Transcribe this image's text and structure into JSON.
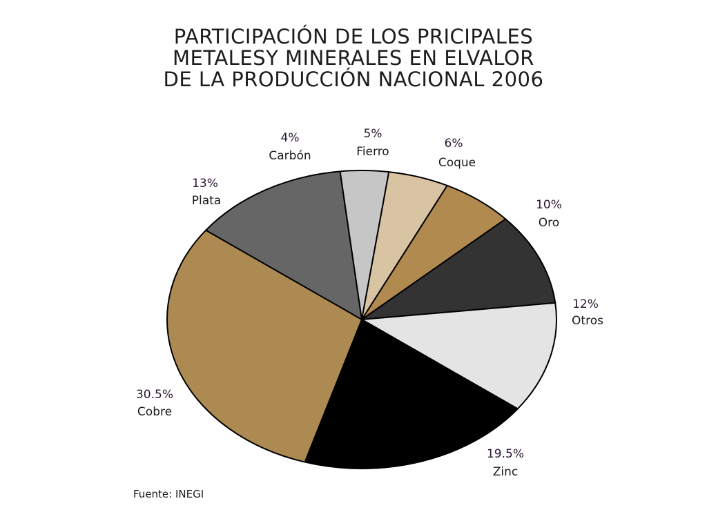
{
  "chart_data": {
    "type": "pie",
    "title_lines": [
      "PARTICIPACIÓN DE LOS PRICIPALES",
      "METALESY MINERALES EN ELVALOR",
      "DE LA PRODUCCIÓN NACIONAL 2006"
    ],
    "slices": [
      {
        "name": "Coque",
        "value": 6,
        "label": "6%",
        "color": "#b08a4e"
      },
      {
        "name": "Oro",
        "value": 10,
        "label": "10%",
        "color": "#333333"
      },
      {
        "name": "Otros",
        "value": 12,
        "label": "12%",
        "color": "#e4e4e4"
      },
      {
        "name": "Zinc",
        "value": 19.5,
        "label": "19.5%",
        "color": "#000000"
      },
      {
        "name": "Cobre",
        "value": 30.5,
        "label": "30.5%",
        "color": "#ad8a52"
      },
      {
        "name": "Plata",
        "value": 13,
        "label": "13%",
        "color": "#666666"
      },
      {
        "name": "Carbón",
        "value": 4,
        "label": "4%",
        "color": "#c6c6c6"
      },
      {
        "name": "Fierro",
        "value": 5,
        "label": "5%",
        "color": "#d8c4a3"
      }
    ]
  },
  "source": "Fuente: INEGI"
}
